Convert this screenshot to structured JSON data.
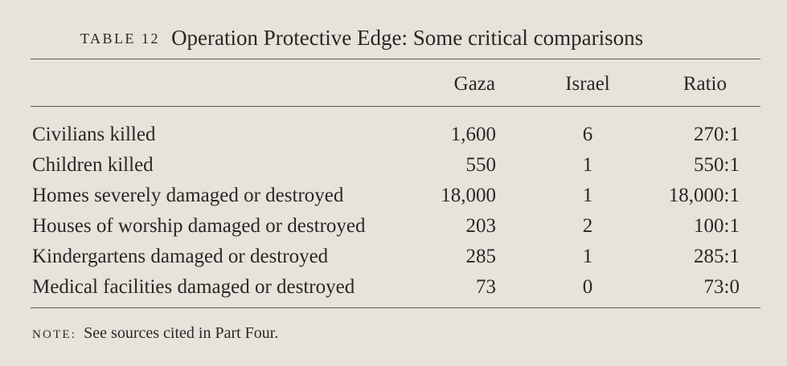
{
  "caption": {
    "label": "Table 12",
    "title": "Operation Protective Edge: Some critical comparisons"
  },
  "columns": [
    "",
    "Gaza",
    "Israel",
    "Ratio"
  ],
  "rows": [
    {
      "label": "Civilians killed",
      "gaza": "1,600",
      "israel": "6",
      "ratio": "270:1"
    },
    {
      "label": "Children killed",
      "gaza": "550",
      "israel": "1",
      "ratio": "550:1"
    },
    {
      "label": "Homes severely damaged or destroyed",
      "gaza": "18,000",
      "israel": "1",
      "ratio": "18,000:1"
    },
    {
      "label": "Houses of worship damaged or destroyed",
      "gaza": "203",
      "israel": "2",
      "ratio": "100:1"
    },
    {
      "label": "Kindergartens damaged or destroyed",
      "gaza": "285",
      "israel": "1",
      "ratio": "285:1"
    },
    {
      "label": "Medical facilities damaged or destroyed",
      "gaza": "73",
      "israel": "0",
      "ratio": "73:0"
    }
  ],
  "note": {
    "label": "Note:",
    "text": "See sources cited in Part Four."
  }
}
